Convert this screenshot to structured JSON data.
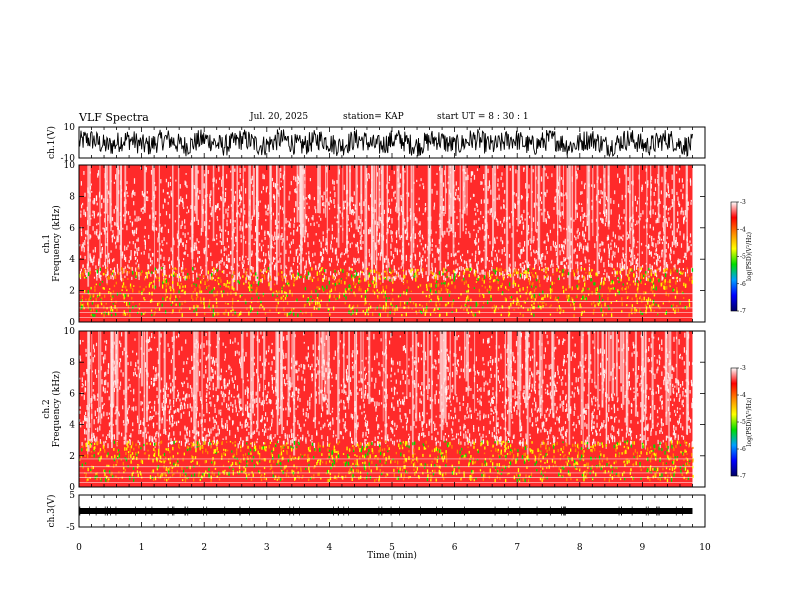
{
  "header": {
    "title": "VLF Spectra",
    "date": "Jul. 20, 2025",
    "station": "station= KAP",
    "start": "start  UT =   8 : 30 : 1"
  },
  "chart_data": [
    {
      "id": "ch1-waveform",
      "type": "line",
      "ylabel": "ch.1(V)",
      "ylim": [
        -10,
        10
      ],
      "yticks": [
        "10",
        "-10"
      ],
      "xlim": [
        0,
        10
      ],
      "description_values": "dense oscillating waveform spanning roughly -10 to 10 V from 0 to ~9.8 min"
    },
    {
      "id": "ch1-spectrogram",
      "type": "heatmap",
      "ylabel": "ch.1\nFrequency (kHz)",
      "ylim": [
        0,
        10
      ],
      "yticks": [
        "0",
        "2",
        "4",
        "6",
        "8",
        "10"
      ],
      "xlim": [
        0,
        10
      ],
      "data_extent_min": 9.8,
      "colorbar": {
        "label": "log(PSD)(V²/Hz)",
        "range": [
          -7,
          -3
        ],
        "ticks": [
          "-3",
          "-4",
          "-5",
          "-6",
          "-7"
        ]
      },
      "bands": {
        "dense_low_kHz": [
          0.5,
          3.5
        ]
      }
    },
    {
      "id": "ch2-spectrogram",
      "type": "heatmap",
      "ylabel": "ch.2\nFrequency (kHz)",
      "ylim": [
        0,
        10
      ],
      "yticks": [
        "0",
        "2",
        "4",
        "6",
        "8",
        "10"
      ],
      "xlim": [
        0,
        10
      ],
      "data_extent_min": 9.8,
      "colorbar": {
        "label": "log(PSD)(V²/Hz)",
        "range": [
          -7,
          -3
        ],
        "ticks": [
          "-3",
          "-4",
          "-5",
          "-6",
          "-7"
        ]
      },
      "bands": {
        "dense_low_kHz": [
          0.5,
          3.0
        ]
      }
    },
    {
      "id": "ch3-waveform",
      "type": "line",
      "ylabel": "ch.3(V)",
      "ylim": [
        -5,
        5
      ],
      "yticks": [
        "5",
        "-5"
      ],
      "xlim": [
        0,
        10
      ],
      "xticks": [
        "0",
        "1",
        "2",
        "3",
        "4",
        "5",
        "6",
        "7",
        "8",
        "9",
        "10"
      ],
      "xlabel": "Time (min)",
      "level_V": 0,
      "description_values": "flat thick trace near 0 V from 0 to ~9.8 min"
    }
  ],
  "colors": {
    "colormap": [
      "#000066",
      "#0000ff",
      "#00a0ff",
      "#00dd00",
      "#ffff00",
      "#ff8800",
      "#ff0000",
      "#ffffff"
    ]
  }
}
